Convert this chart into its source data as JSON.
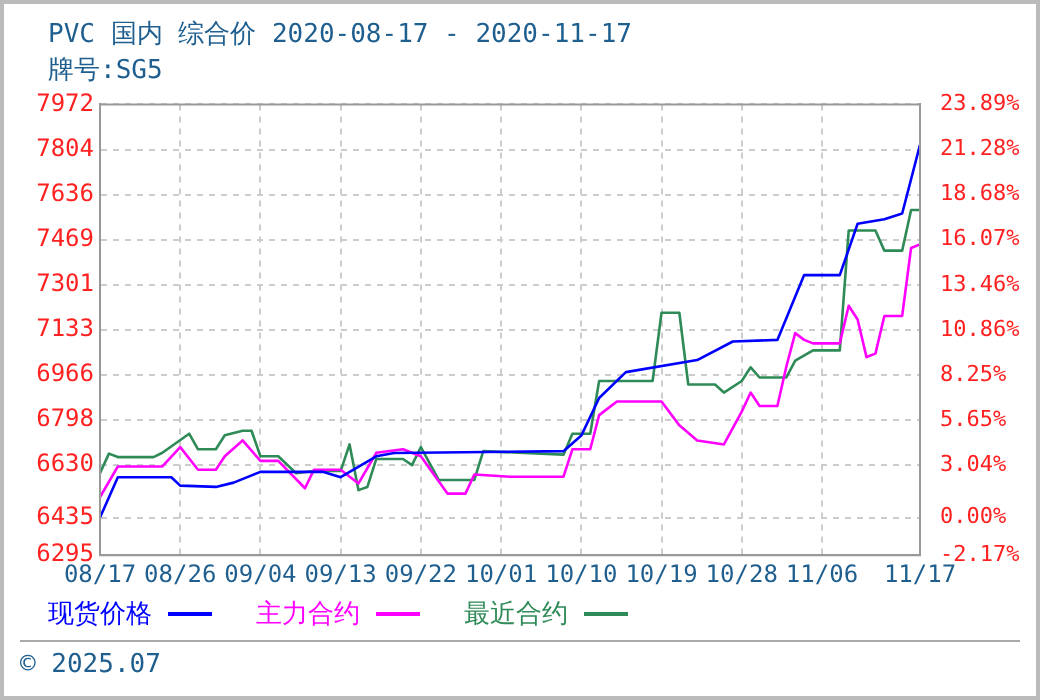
{
  "chart_data": {
    "type": "line",
    "title": "PVC 国内 综合价 2020-08-17 - 2020-11-17",
    "subtitle": "牌号:SG5",
    "series": [
      {
        "name": "现货价格",
        "color": "#0000ff",
        "x": [
          "2020-08-17",
          "2020-08-19",
          "2020-08-25",
          "2020-08-26",
          "2020-08-30",
          "2020-09-01",
          "2020-09-04",
          "2020-09-11",
          "2020-09-13",
          "2020-09-17",
          "2020-09-19",
          "2020-10-08",
          "2020-10-10",
          "2020-10-12",
          "2020-10-15",
          "2020-10-23",
          "2020-10-27",
          "2020-11-01",
          "2020-11-04",
          "2020-11-08",
          "2020-11-10",
          "2020-11-13",
          "2020-11-15",
          "2020-11-17"
        ],
        "values": [
          6435,
          6585,
          6585,
          6554,
          6549,
          6565,
          6605,
          6605,
          6585,
          6663,
          6675,
          6682,
          6740,
          6880,
          6976,
          7021,
          7090,
          7096,
          7337,
          7337,
          7528,
          7545,
          7566,
          7822
        ]
      },
      {
        "name": "主力合约",
        "color": "#ff00ff",
        "x": [
          "2020-08-17",
          "2020-08-19",
          "2020-08-24",
          "2020-08-26",
          "2020-08-28",
          "2020-08-30",
          "2020-08-31",
          "2020-09-02",
          "2020-09-04",
          "2020-09-06",
          "2020-09-09",
          "2020-09-10",
          "2020-09-13",
          "2020-09-15",
          "2020-09-17",
          "2020-09-20",
          "2020-09-22",
          "2020-09-25",
          "2020-09-27",
          "2020-09-28",
          "2020-10-02",
          "2020-10-08",
          "2020-10-09",
          "2020-10-11",
          "2020-10-12",
          "2020-10-14",
          "2020-10-19",
          "2020-10-21",
          "2020-10-23",
          "2020-10-26",
          "2020-10-28",
          "2020-10-29",
          "2020-10-30",
          "2020-11-01",
          "2020-11-02",
          "2020-11-03",
          "2020-11-04",
          "2020-11-05",
          "2020-11-08",
          "2020-11-09",
          "2020-11-10",
          "2020-11-11",
          "2020-11-12",
          "2020-11-13",
          "2020-11-15",
          "2020-11-16",
          "2020-11-17"
        ],
        "values": [
          6511,
          6625,
          6625,
          6697,
          6613,
          6613,
          6663,
          6722,
          6646,
          6646,
          6544,
          6613,
          6613,
          6562,
          6676,
          6689,
          6663,
          6524,
          6524,
          6595,
          6587,
          6587,
          6689,
          6689,
          6816,
          6867,
          6867,
          6778,
          6722,
          6707,
          6829,
          6900,
          6850,
          6850,
          6996,
          7121,
          7096,
          7083,
          7083,
          7223,
          7172,
          7032,
          7045,
          7185,
          7185,
          7438,
          7451
        ]
      },
      {
        "name": "最近合约",
        "color": "#2e8b57",
        "x": [
          "2020-08-17",
          "2020-08-18",
          "2020-08-19",
          "2020-08-23",
          "2020-08-24",
          "2020-08-27",
          "2020-08-28",
          "2020-08-30",
          "2020-08-31",
          "2020-09-02",
          "2020-09-03",
          "2020-09-04",
          "2020-09-06",
          "2020-09-08",
          "2020-09-10",
          "2020-09-13",
          "2020-09-14",
          "2020-09-15",
          "2020-09-16",
          "2020-09-17",
          "2020-09-20",
          "2020-09-21",
          "2020-09-22",
          "2020-09-24",
          "2020-09-28",
          "2020-09-29",
          "2020-10-08",
          "2020-10-09",
          "2020-10-11",
          "2020-10-12",
          "2020-10-18",
          "2020-10-19",
          "2020-10-21",
          "2020-10-22",
          "2020-10-25",
          "2020-10-26",
          "2020-10-28",
          "2020-10-29",
          "2020-10-30",
          "2020-11-02",
          "2020-11-03",
          "2020-11-05",
          "2020-11-08",
          "2020-11-09",
          "2020-11-12",
          "2020-11-13",
          "2020-11-15",
          "2020-11-16",
          "2020-11-17"
        ],
        "values": [
          6600,
          6673,
          6660,
          6660,
          6676,
          6747,
          6689,
          6689,
          6741,
          6758,
          6758,
          6663,
          6663,
          6600,
          6608,
          6608,
          6707,
          6537,
          6549,
          6653,
          6653,
          6630,
          6697,
          6575,
          6575,
          6682,
          6669,
          6747,
          6747,
          6943,
          6943,
          7197,
          7197,
          6930,
          6930,
          6900,
          6943,
          6994,
          6956,
          6956,
          7019,
          7057,
          7057,
          7503,
          7503,
          7428,
          7428,
          7579,
          7579
        ]
      }
    ],
    "xlim": [
      "2020-08-17",
      "2020-11-17"
    ],
    "xticks": [
      {
        "value": "2020-08-17",
        "label": "08/17"
      },
      {
        "value": "2020-08-26",
        "label": "08/26"
      },
      {
        "value": "2020-09-04",
        "label": "09/04"
      },
      {
        "value": "2020-09-13",
        "label": "09/13"
      },
      {
        "value": "2020-09-22",
        "label": "09/22"
      },
      {
        "value": "2020-10-01",
        "label": "10/01"
      },
      {
        "value": "2020-10-10",
        "label": "10/10"
      },
      {
        "value": "2020-10-19",
        "label": "10/19"
      },
      {
        "value": "2020-10-28",
        "label": "10/28"
      },
      {
        "value": "2020-11-06",
        "label": "11/06"
      },
      {
        "value": "2020-11-17",
        "label": "11/17"
      }
    ],
    "ylim": [
      6295,
      7972
    ],
    "yticks": [
      6295,
      6435,
      6630,
      6798,
      6966,
      7133,
      7301,
      7469,
      7636,
      7804,
      7972
    ],
    "y2lim": [
      -2.17,
      23.89
    ],
    "y2ticks": [
      {
        "value": -2.17,
        "label": "-2.17%"
      },
      {
        "value": 0,
        "label": "0.00%"
      },
      {
        "value": 3.04,
        "label": "3.04%"
      },
      {
        "value": 5.65,
        "label": "5.65%"
      },
      {
        "value": 8.25,
        "label": "8.25%"
      },
      {
        "value": 10.86,
        "label": "10.86%"
      },
      {
        "value": 13.46,
        "label": "13.46%"
      },
      {
        "value": 16.07,
        "label": "16.07%"
      },
      {
        "value": 18.68,
        "label": "18.68%"
      },
      {
        "value": 21.28,
        "label": "21.28%"
      },
      {
        "value": 23.89,
        "label": "23.89%"
      }
    ],
    "grid": true,
    "legend": "bottom",
    "marker": "none",
    "line_style": "solid",
    "annotations": [
      "© 2025.07"
    ]
  }
}
